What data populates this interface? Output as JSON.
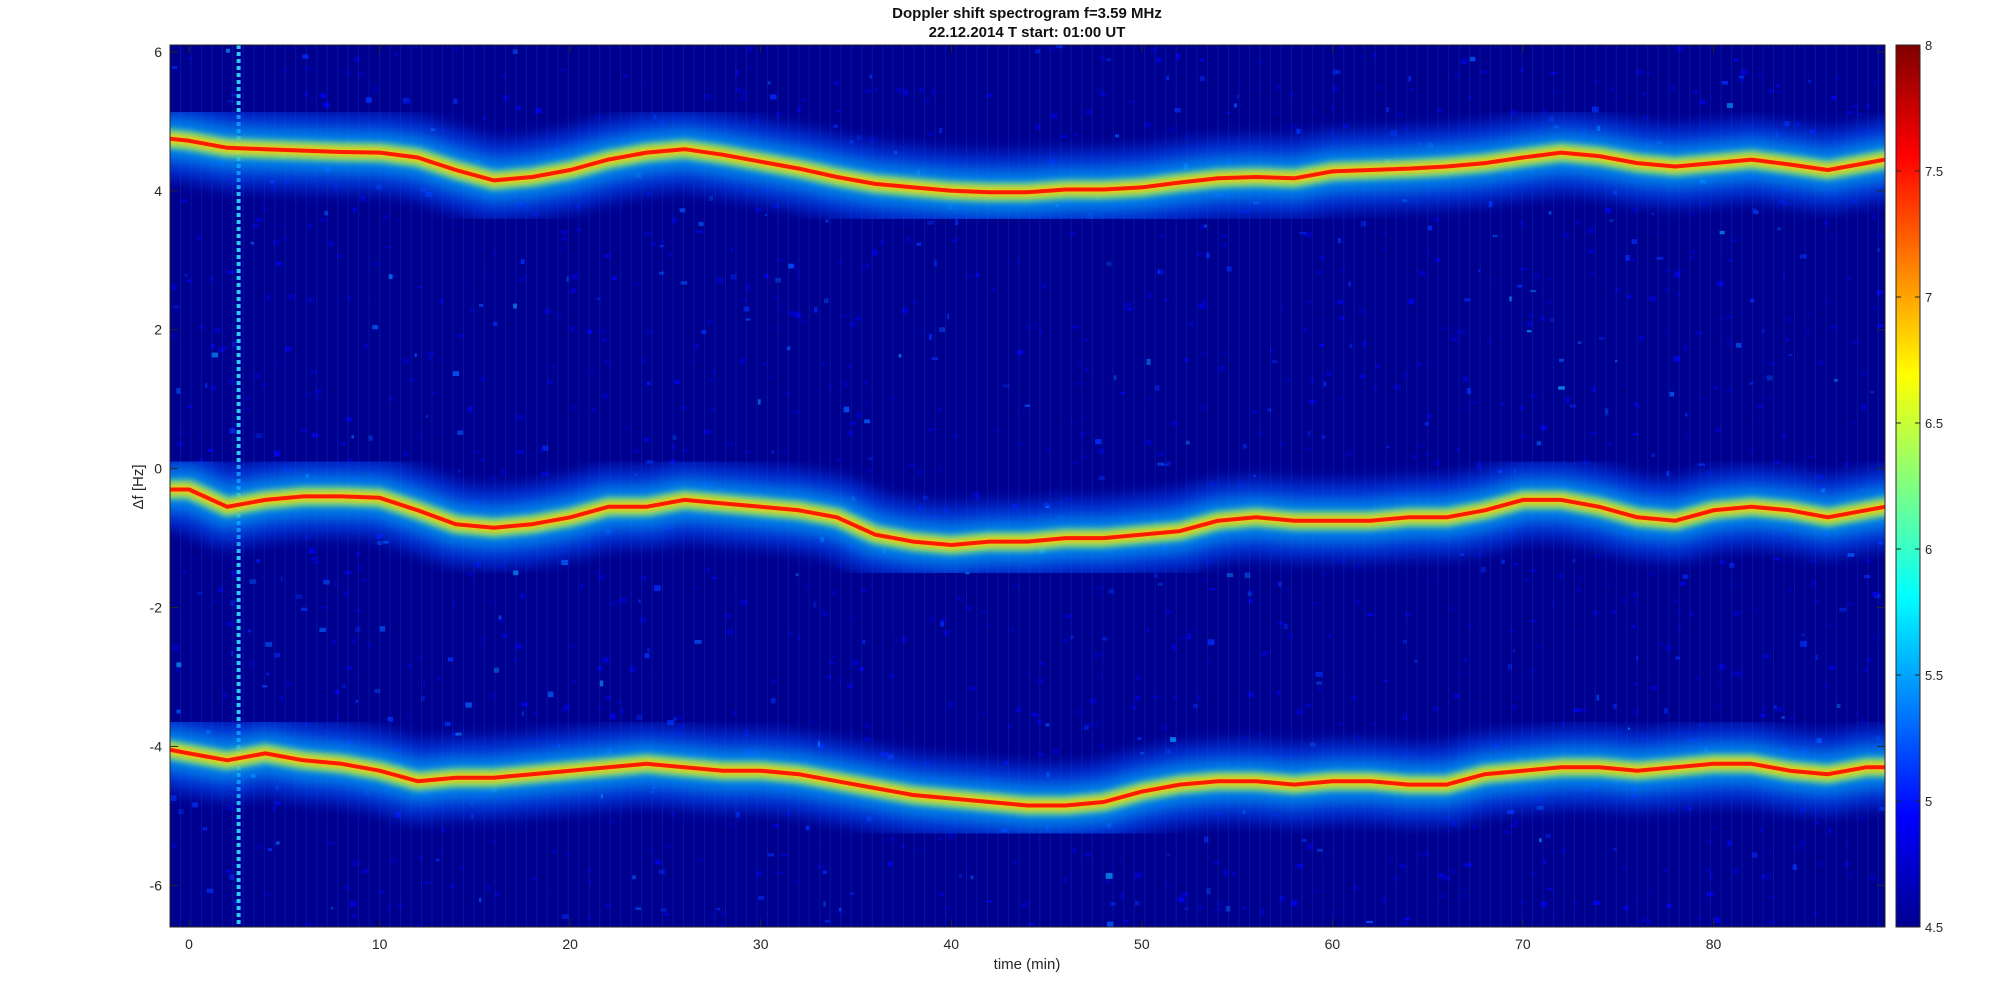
{
  "chart_data": {
    "type": "heatmap",
    "title": "Doppler shift spectrogram f=3.59 MHz",
    "subtitle": "22.12.2014   T start: 01:00 UT",
    "xlabel": "time (min)",
    "ylabel": "Δf [Hz]",
    "xlim": [
      -1,
      89
    ],
    "ylim": [
      -6.6,
      6.1
    ],
    "x_ticks": [
      0,
      10,
      20,
      30,
      40,
      50,
      60,
      70,
      80
    ],
    "y_ticks": [
      6,
      4,
      2,
      0,
      -2,
      -4,
      -6
    ],
    "colorbar": {
      "colormap": "jet",
      "range": [
        4.5,
        8
      ],
      "ticks": [
        "8",
        "7.5",
        "7",
        "6.5",
        "6",
        "5.5",
        "5",
        "4.5"
      ]
    },
    "grid": false,
    "series": [
      {
        "x": [
          -1,
          0,
          2,
          4,
          6,
          8,
          10,
          12,
          14,
          16,
          18,
          20,
          22,
          24,
          26,
          28,
          30,
          32,
          34,
          36,
          38,
          40,
          42,
          44,
          46,
          48,
          50,
          52,
          54,
          56,
          58,
          60,
          62,
          64,
          66,
          68,
          70,
          72,
          74,
          76,
          78,
          80,
          82,
          84,
          86,
          88,
          89
        ],
        "y": [
          4.75,
          4.72,
          4.62,
          4.6,
          4.58,
          4.56,
          4.55,
          4.48,
          4.3,
          4.15,
          4.2,
          4.3,
          4.45,
          4.55,
          4.6,
          4.52,
          4.42,
          4.32,
          4.2,
          4.1,
          4.05,
          4.0,
          3.98,
          3.98,
          4.02,
          4.02,
          4.05,
          4.12,
          4.18,
          4.2,
          4.18,
          4.28,
          4.3,
          4.32,
          4.35,
          4.4,
          4.48,
          4.55,
          4.5,
          4.4,
          4.35,
          4.4,
          4.45,
          4.38,
          4.3,
          4.4,
          4.45
        ]
      },
      {
        "x": [
          -1,
          0,
          2,
          4,
          6,
          8,
          10,
          12,
          14,
          16,
          18,
          20,
          22,
          24,
          26,
          28,
          30,
          32,
          34,
          36,
          38,
          40,
          42,
          44,
          46,
          48,
          50,
          52,
          54,
          56,
          58,
          60,
          62,
          64,
          66,
          68,
          70,
          72,
          74,
          76,
          78,
          80,
          82,
          84,
          86,
          88,
          89
        ],
        "y": [
          -0.3,
          -0.3,
          -0.55,
          -0.45,
          -0.4,
          -0.4,
          -0.42,
          -0.6,
          -0.8,
          -0.85,
          -0.8,
          -0.7,
          -0.55,
          -0.55,
          -0.45,
          -0.5,
          -0.55,
          -0.6,
          -0.7,
          -0.95,
          -1.05,
          -1.1,
          -1.05,
          -1.05,
          -1.0,
          -1.0,
          -0.95,
          -0.9,
          -0.75,
          -0.7,
          -0.75,
          -0.75,
          -0.75,
          -0.7,
          -0.7,
          -0.6,
          -0.45,
          -0.45,
          -0.55,
          -0.7,
          -0.75,
          -0.6,
          -0.55,
          -0.6,
          -0.7,
          -0.6,
          -0.55
        ]
      },
      {
        "x": [
          -1,
          0,
          2,
          4,
          6,
          8,
          10,
          12,
          14,
          16,
          18,
          20,
          22,
          24,
          26,
          28,
          30,
          32,
          34,
          36,
          38,
          40,
          42,
          44,
          46,
          48,
          50,
          52,
          54,
          56,
          58,
          60,
          62,
          64,
          66,
          68,
          70,
          72,
          74,
          76,
          78,
          80,
          82,
          84,
          86,
          88,
          89
        ],
        "y": [
          -4.05,
          -4.1,
          -4.2,
          -4.1,
          -4.2,
          -4.25,
          -4.35,
          -4.5,
          -4.45,
          -4.45,
          -4.4,
          -4.35,
          -4.3,
          -4.25,
          -4.3,
          -4.35,
          -4.35,
          -4.4,
          -4.5,
          -4.6,
          -4.7,
          -4.75,
          -4.8,
          -4.85,
          -4.85,
          -4.8,
          -4.65,
          -4.55,
          -4.5,
          -4.5,
          -4.55,
          -4.5,
          -4.5,
          -4.55,
          -4.55,
          -4.4,
          -4.35,
          -4.3,
          -4.3,
          -4.35,
          -4.3,
          -4.25,
          -4.25,
          -4.35,
          -4.4,
          -4.3,
          -4.3
        ]
      }
    ]
  }
}
